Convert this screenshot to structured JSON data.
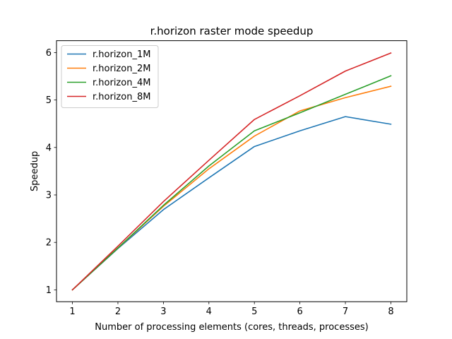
{
  "chart_data": {
    "type": "line",
    "title": "r.horizon raster mode speedup",
    "xlabel": "Number of processing elements (cores, threads, processes)",
    "ylabel": "Speedup",
    "x": [
      1,
      2,
      3,
      4,
      5,
      6,
      7,
      8
    ],
    "xlim": [
      0.65,
      8.35
    ],
    "ylim": [
      0.75,
      6.25
    ],
    "xticks": [
      1,
      2,
      3,
      4,
      5,
      6,
      7,
      8
    ],
    "yticks": [
      1,
      2,
      3,
      4,
      5,
      6
    ],
    "grid": false,
    "legend_position": "top-left",
    "series": [
      {
        "name": "r.horizon_1M",
        "color": "#1f77b4",
        "values": [
          1.0,
          1.87,
          2.69,
          3.36,
          4.02,
          4.35,
          4.65,
          4.49
        ]
      },
      {
        "name": "r.horizon_2M",
        "color": "#ff7f0e",
        "values": [
          1.0,
          1.88,
          2.76,
          3.55,
          4.24,
          4.77,
          5.05,
          5.29
        ]
      },
      {
        "name": "r.horizon_4M",
        "color": "#2ca02c",
        "values": [
          1.0,
          1.88,
          2.78,
          3.61,
          4.35,
          4.73,
          5.12,
          5.51
        ]
      },
      {
        "name": "r.horizon_8M",
        "color": "#d62728",
        "values": [
          1.0,
          1.92,
          2.86,
          3.73,
          4.59,
          5.09,
          5.61,
          5.99
        ]
      }
    ]
  }
}
